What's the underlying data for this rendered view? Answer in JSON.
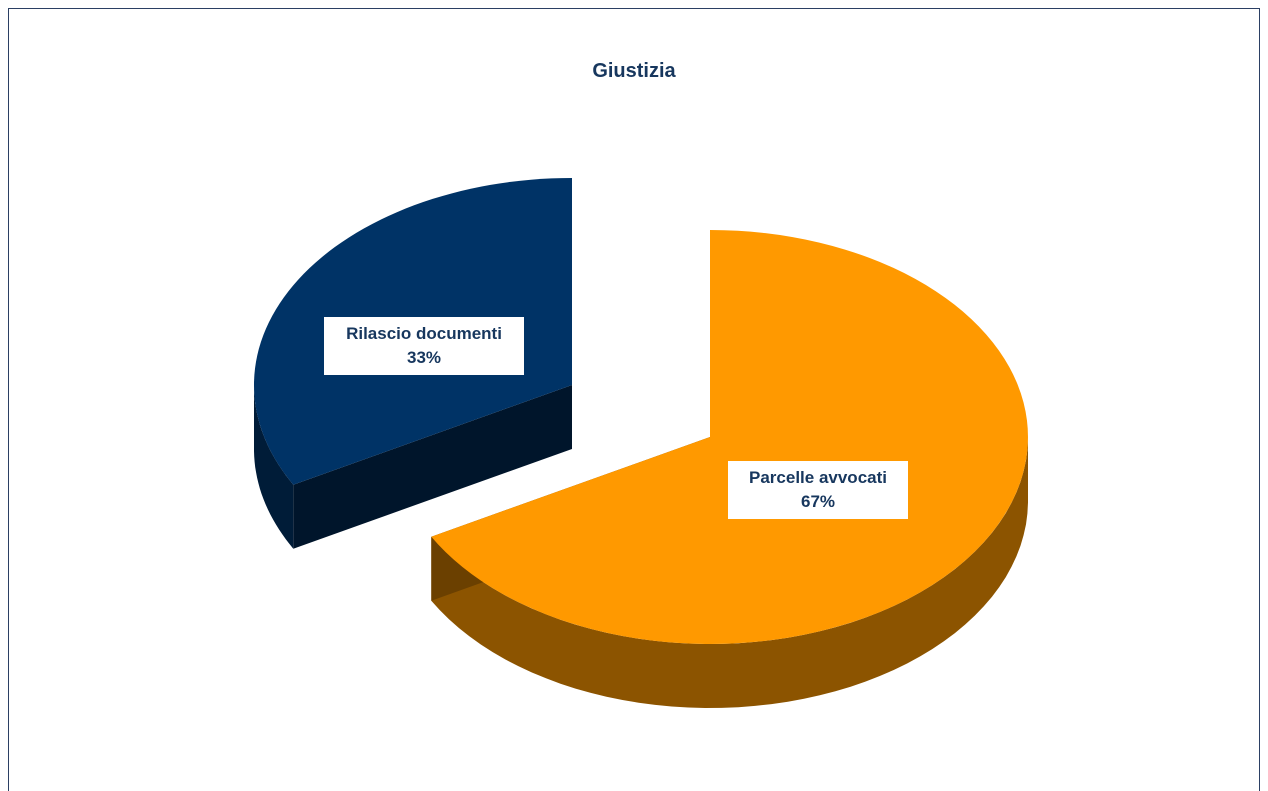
{
  "chart_data": {
    "type": "pie",
    "title": "Giustizia",
    "slices": [
      {
        "label": "Rilascio documenti",
        "value": 33,
        "value_label": "33%",
        "color": "#003366",
        "exploded": true
      },
      {
        "label": "Parcelle avvocati",
        "value": 67,
        "value_label": "67%",
        "color": "#ff9900",
        "exploded": false
      }
    ],
    "three_d": true,
    "legend": "none"
  }
}
